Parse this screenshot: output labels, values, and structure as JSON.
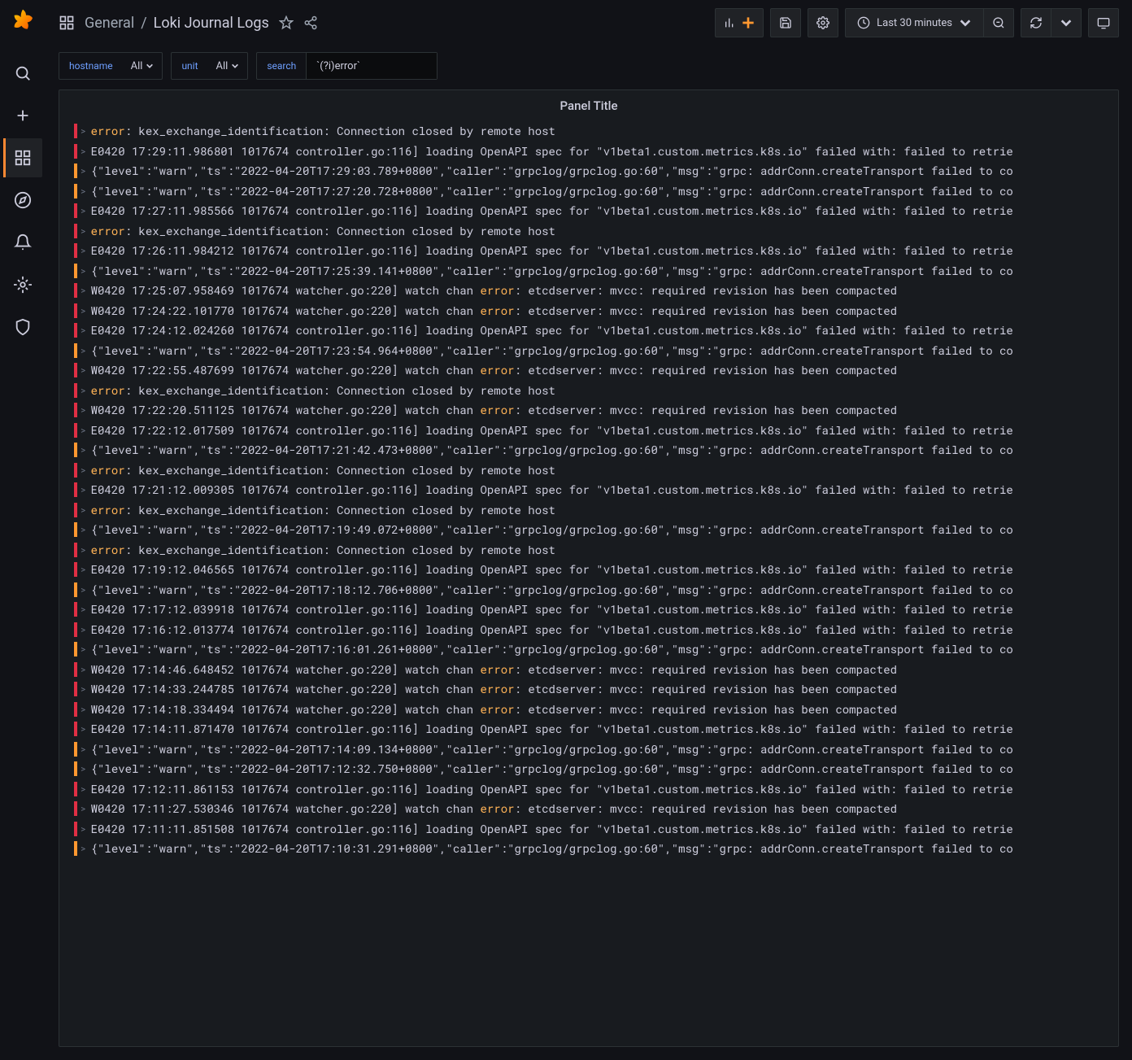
{
  "breadcrumb": {
    "folder": "General",
    "title": "Loki Journal Logs"
  },
  "timepicker": {
    "label": "Last 30 minutes"
  },
  "variables": {
    "hostname": {
      "label": "hostname",
      "value": "All"
    },
    "unit": {
      "label": "unit",
      "value": "All"
    },
    "search": {
      "label": "search",
      "value": "`(?i)error`"
    }
  },
  "panel": {
    "title": "Panel Title"
  },
  "addPanelColor": "#ff9830",
  "colors": {
    "bg": "#111217",
    "panel": "#181b1f",
    "border": "#2c3235",
    "text": "#ccccdc",
    "link": "#6e9fff",
    "sevError": "#e02f44",
    "sevWarn": "#ff9830",
    "highlight": "#ffb357"
  },
  "logs": [
    {
      "sev": "error",
      "pre": "",
      "hl": "error",
      "post": ": kex_exchange_identification: Connection closed by remote host"
    },
    {
      "sev": "error",
      "pre": "E0420 17:29:11.986801 1017674 controller.go:116] loading OpenAPI spec for \"v1beta1.custom.metrics.k8s.io\" failed with: failed to retrie",
      "hl": "",
      "post": ""
    },
    {
      "sev": "warn",
      "pre": "{\"level\":\"warn\",\"ts\":\"2022-04-20T17:29:03.789+0800\",\"caller\":\"grpclog/grpclog.go:60\",\"msg\":\"grpc: addrConn.createTransport failed to co",
      "hl": "",
      "post": ""
    },
    {
      "sev": "warn",
      "pre": "{\"level\":\"warn\",\"ts\":\"2022-04-20T17:27:20.728+0800\",\"caller\":\"grpclog/grpclog.go:60\",\"msg\":\"grpc: addrConn.createTransport failed to co",
      "hl": "",
      "post": ""
    },
    {
      "sev": "error",
      "pre": "E0420 17:27:11.985566 1017674 controller.go:116] loading OpenAPI spec for \"v1beta1.custom.metrics.k8s.io\" failed with: failed to retrie",
      "hl": "",
      "post": ""
    },
    {
      "sev": "error",
      "pre": "",
      "hl": "error",
      "post": ": kex_exchange_identification: Connection closed by remote host"
    },
    {
      "sev": "error",
      "pre": "E0420 17:26:11.984212 1017674 controller.go:116] loading OpenAPI spec for \"v1beta1.custom.metrics.k8s.io\" failed with: failed to retrie",
      "hl": "",
      "post": ""
    },
    {
      "sev": "warn",
      "pre": "{\"level\":\"warn\",\"ts\":\"2022-04-20T17:25:39.141+0800\",\"caller\":\"grpclog/grpclog.go:60\",\"msg\":\"grpc: addrConn.createTransport failed to co",
      "hl": "",
      "post": ""
    },
    {
      "sev": "error",
      "pre": "W0420 17:25:07.958469 1017674 watcher.go:220] watch chan ",
      "hl": "error",
      "post": ": etcdserver: mvcc: required revision has been compacted"
    },
    {
      "sev": "error",
      "pre": "W0420 17:24:22.101770 1017674 watcher.go:220] watch chan ",
      "hl": "error",
      "post": ": etcdserver: mvcc: required revision has been compacted"
    },
    {
      "sev": "error",
      "pre": "E0420 17:24:12.024260 1017674 controller.go:116] loading OpenAPI spec for \"v1beta1.custom.metrics.k8s.io\" failed with: failed to retrie",
      "hl": "",
      "post": ""
    },
    {
      "sev": "warn",
      "pre": "{\"level\":\"warn\",\"ts\":\"2022-04-20T17:23:54.964+0800\",\"caller\":\"grpclog/grpclog.go:60\",\"msg\":\"grpc: addrConn.createTransport failed to co",
      "hl": "",
      "post": ""
    },
    {
      "sev": "error",
      "pre": "W0420 17:22:55.487699 1017674 watcher.go:220] watch chan ",
      "hl": "error",
      "post": ": etcdserver: mvcc: required revision has been compacted"
    },
    {
      "sev": "error",
      "pre": "",
      "hl": "error",
      "post": ": kex_exchange_identification: Connection closed by remote host"
    },
    {
      "sev": "error",
      "pre": "W0420 17:22:20.511125 1017674 watcher.go:220] watch chan ",
      "hl": "error",
      "post": ": etcdserver: mvcc: required revision has been compacted"
    },
    {
      "sev": "error",
      "pre": "E0420 17:22:12.017509 1017674 controller.go:116] loading OpenAPI spec for \"v1beta1.custom.metrics.k8s.io\" failed with: failed to retrie",
      "hl": "",
      "post": ""
    },
    {
      "sev": "warn",
      "pre": "{\"level\":\"warn\",\"ts\":\"2022-04-20T17:21:42.473+0800\",\"caller\":\"grpclog/grpclog.go:60\",\"msg\":\"grpc: addrConn.createTransport failed to co",
      "hl": "",
      "post": ""
    },
    {
      "sev": "error",
      "pre": "",
      "hl": "error",
      "post": ": kex_exchange_identification: Connection closed by remote host"
    },
    {
      "sev": "error",
      "pre": "E0420 17:21:12.009305 1017674 controller.go:116] loading OpenAPI spec for \"v1beta1.custom.metrics.k8s.io\" failed with: failed to retrie",
      "hl": "",
      "post": ""
    },
    {
      "sev": "error",
      "pre": "",
      "hl": "error",
      "post": ": kex_exchange_identification: Connection closed by remote host"
    },
    {
      "sev": "warn",
      "pre": "{\"level\":\"warn\",\"ts\":\"2022-04-20T17:19:49.072+0800\",\"caller\":\"grpclog/grpclog.go:60\",\"msg\":\"grpc: addrConn.createTransport failed to co",
      "hl": "",
      "post": ""
    },
    {
      "sev": "error",
      "pre": "",
      "hl": "error",
      "post": ": kex_exchange_identification: Connection closed by remote host"
    },
    {
      "sev": "error",
      "pre": "E0420 17:19:12.046565 1017674 controller.go:116] loading OpenAPI spec for \"v1beta1.custom.metrics.k8s.io\" failed with: failed to retrie",
      "hl": "",
      "post": ""
    },
    {
      "sev": "warn",
      "pre": "{\"level\":\"warn\",\"ts\":\"2022-04-20T17:18:12.706+0800\",\"caller\":\"grpclog/grpclog.go:60\",\"msg\":\"grpc: addrConn.createTransport failed to co",
      "hl": "",
      "post": ""
    },
    {
      "sev": "error",
      "pre": "E0420 17:17:12.039918 1017674 controller.go:116] loading OpenAPI spec for \"v1beta1.custom.metrics.k8s.io\" failed with: failed to retrie",
      "hl": "",
      "post": ""
    },
    {
      "sev": "error",
      "pre": "E0420 17:16:12.013774 1017674 controller.go:116] loading OpenAPI spec for \"v1beta1.custom.metrics.k8s.io\" failed with: failed to retrie",
      "hl": "",
      "post": ""
    },
    {
      "sev": "warn",
      "pre": "{\"level\":\"warn\",\"ts\":\"2022-04-20T17:16:01.261+0800\",\"caller\":\"grpclog/grpclog.go:60\",\"msg\":\"grpc: addrConn.createTransport failed to co",
      "hl": "",
      "post": ""
    },
    {
      "sev": "error",
      "pre": "W0420 17:14:46.648452 1017674 watcher.go:220] watch chan ",
      "hl": "error",
      "post": ": etcdserver: mvcc: required revision has been compacted"
    },
    {
      "sev": "error",
      "pre": "W0420 17:14:33.244785 1017674 watcher.go:220] watch chan ",
      "hl": "error",
      "post": ": etcdserver: mvcc: required revision has been compacted"
    },
    {
      "sev": "error",
      "pre": "W0420 17:14:18.334494 1017674 watcher.go:220] watch chan ",
      "hl": "error",
      "post": ": etcdserver: mvcc: required revision has been compacted"
    },
    {
      "sev": "error",
      "pre": "E0420 17:14:11.871470 1017674 controller.go:116] loading OpenAPI spec for \"v1beta1.custom.metrics.k8s.io\" failed with: failed to retrie",
      "hl": "",
      "post": ""
    },
    {
      "sev": "warn",
      "pre": "{\"level\":\"warn\",\"ts\":\"2022-04-20T17:14:09.134+0800\",\"caller\":\"grpclog/grpclog.go:60\",\"msg\":\"grpc: addrConn.createTransport failed to co",
      "hl": "",
      "post": ""
    },
    {
      "sev": "warn",
      "pre": "{\"level\":\"warn\",\"ts\":\"2022-04-20T17:12:32.750+0800\",\"caller\":\"grpclog/grpclog.go:60\",\"msg\":\"grpc: addrConn.createTransport failed to co",
      "hl": "",
      "post": ""
    },
    {
      "sev": "error",
      "pre": "E0420 17:12:11.861153 1017674 controller.go:116] loading OpenAPI spec for \"v1beta1.custom.metrics.k8s.io\" failed with: failed to retrie",
      "hl": "",
      "post": ""
    },
    {
      "sev": "error",
      "pre": "W0420 17:11:27.530346 1017674 watcher.go:220] watch chan ",
      "hl": "error",
      "post": ": etcdserver: mvcc: required revision has been compacted"
    },
    {
      "sev": "error",
      "pre": "E0420 17:11:11.851508 1017674 controller.go:116] loading OpenAPI spec for \"v1beta1.custom.metrics.k8s.io\" failed with: failed to retrie",
      "hl": "",
      "post": ""
    },
    {
      "sev": "warn",
      "pre": "{\"level\":\"warn\",\"ts\":\"2022-04-20T17:10:31.291+0800\",\"caller\":\"grpclog/grpclog.go:60\",\"msg\":\"grpc: addrConn.createTransport failed to co",
      "hl": "",
      "post": ""
    }
  ]
}
